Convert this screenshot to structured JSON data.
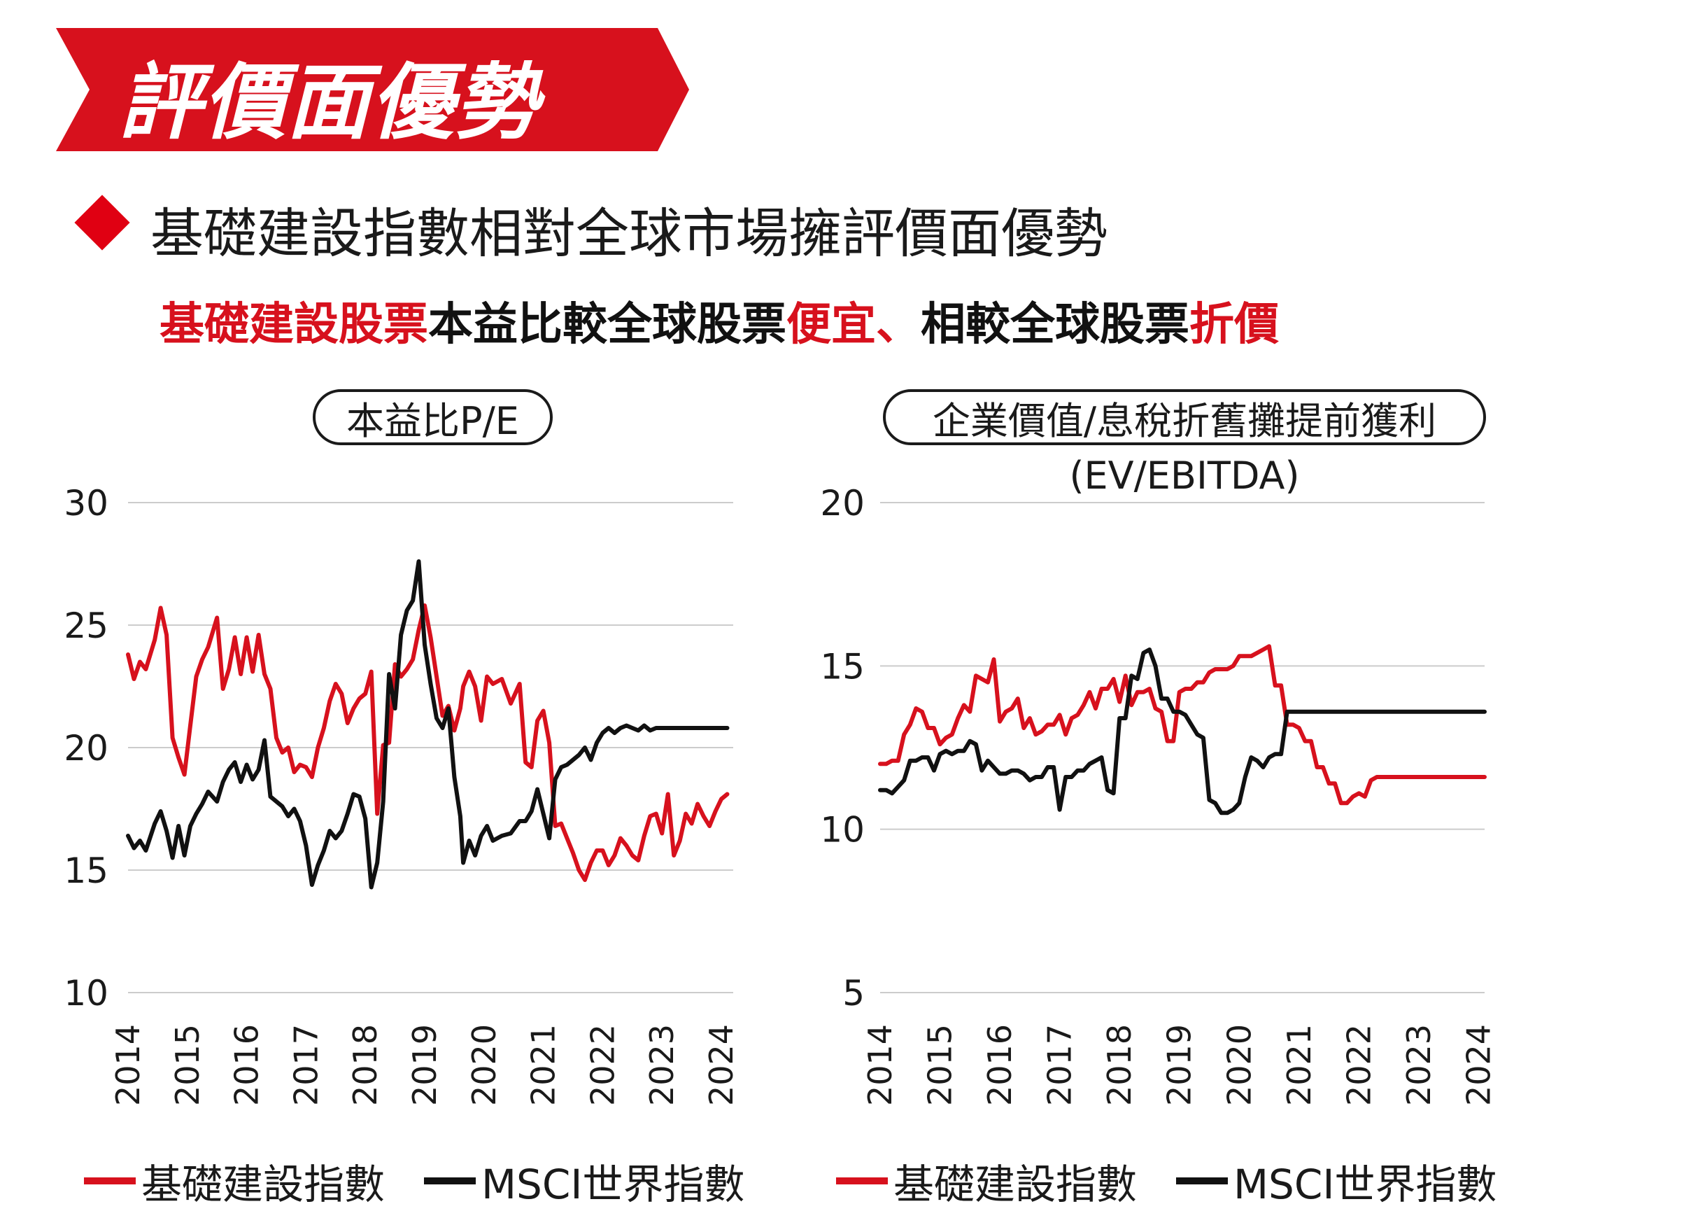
{
  "header": {
    "banner_title": "評價面優勢",
    "subheading": "基礎建設指數相對全球市場擁評價面優勢",
    "highlight": [
      {
        "text": "基礎建設股票",
        "color": "#d7111d"
      },
      {
        "text": "本益比較全球股票",
        "color": "#111111"
      },
      {
        "text": "便宜",
        "color": "#d7111d"
      },
      {
        "text": "、",
        "color": "#d7111d"
      },
      {
        "text": "相較全球股票",
        "color": "#111111"
      },
      {
        "text": "折價",
        "color": "#d7111d"
      }
    ]
  },
  "colors": {
    "brand_red": "#d7111d",
    "msci_black": "#111111",
    "grid": "#cccccc"
  },
  "legend": {
    "series_a": "基礎建設指數",
    "series_b": "MSCI世界指數"
  },
  "chart_data": [
    {
      "type": "line",
      "title": "本益比P/E",
      "subtitle": "",
      "x_ticks": [
        "2014",
        "2015",
        "2016",
        "2017",
        "2018",
        "2019",
        "2020",
        "2021",
        "2022",
        "2023",
        "2024"
      ],
      "y_ticks": [
        "30",
        "25",
        "20",
        "15",
        "10"
      ],
      "ylim": [
        10,
        30
      ],
      "xlim": [
        2014.0,
        2024.2
      ],
      "grid": true,
      "legend_position": "bottom",
      "series": [
        {
          "name": "基礎建設指數",
          "color": "#d7111d",
          "x": [
            2014.0,
            2014.1,
            2014.2,
            2014.3,
            2014.45,
            2014.55,
            2014.65,
            2014.75,
            2014.85,
            2014.95,
            2015.05,
            2015.15,
            2015.25,
            2015.35,
            2015.5,
            2015.6,
            2015.7,
            2015.8,
            2015.9,
            2016.0,
            2016.1,
            2016.2,
            2016.3,
            2016.4,
            2016.5,
            2016.6,
            2016.7,
            2016.8,
            2016.9,
            2017.0,
            2017.1,
            2017.2,
            2017.3,
            2017.4,
            2017.5,
            2017.6,
            2017.7,
            2017.8,
            2017.9,
            2018.0,
            2018.1,
            2018.2,
            2018.3,
            2018.4,
            2018.5,
            2018.6,
            2018.7,
            2018.8,
            2018.9,
            2019.0,
            2019.1,
            2019.2,
            2019.3,
            2019.4,
            2019.5,
            2019.6,
            2019.65,
            2019.75,
            2019.85,
            2019.95,
            2020.05,
            2020.15,
            2020.3,
            2020.45,
            2020.6,
            2020.7,
            2020.8,
            2020.9,
            2021.0,
            2021.1,
            2021.2,
            2021.3,
            2021.4,
            2021.5,
            2021.6,
            2021.7,
            2021.8,
            2021.9,
            2022.0,
            2022.1,
            2022.2,
            2022.3,
            2022.4,
            2022.5,
            2022.6,
            2022.7,
            2022.8,
            2022.9,
            2023.0,
            2023.1,
            2023.2,
            2023.3,
            2023.4,
            2023.5,
            2023.6,
            2023.7,
            2023.8,
            2023.9,
            2024.0,
            2024.1
          ],
          "y": [
            23.8,
            22.8,
            23.5,
            23.2,
            24.4,
            25.7,
            24.6,
            20.4,
            19.6,
            18.9,
            20.9,
            22.9,
            23.6,
            24.1,
            25.3,
            22.4,
            23.2,
            24.5,
            23.0,
            24.5,
            23.1,
            24.6,
            23.0,
            22.4,
            20.4,
            19.8,
            20.0,
            19.0,
            19.3,
            19.2,
            18.8,
            20.0,
            20.8,
            21.9,
            22.6,
            22.2,
            21.0,
            21.6,
            22.0,
            22.2,
            23.1,
            17.3,
            20.1,
            20.2,
            23.4,
            22.9,
            23.2,
            23.6,
            24.8,
            25.8,
            24.5,
            22.9,
            21.3,
            21.7,
            20.7,
            21.6,
            22.5,
            23.1,
            22.5,
            21.1,
            22.9,
            22.6,
            22.8,
            21.8,
            22.6,
            19.4,
            19.2,
            21.1,
            21.5,
            20.2,
            16.8,
            16.9,
            16.3,
            15.7,
            15.0,
            14.6,
            15.3,
            15.8,
            15.8,
            15.2,
            15.6,
            16.3,
            16.0,
            15.6,
            15.4,
            16.4,
            17.2,
            17.3,
            16.5,
            18.1,
            15.6,
            16.2,
            17.3,
            16.9,
            17.7,
            17.2,
            16.8,
            17.4,
            17.9,
            18.1
          ]
        },
        {
          "name": "MSCI世界指數",
          "color": "#111111",
          "x": [
            2014.0,
            2014.1,
            2014.2,
            2014.3,
            2014.45,
            2014.55,
            2014.65,
            2014.75,
            2014.85,
            2014.95,
            2015.05,
            2015.15,
            2015.25,
            2015.35,
            2015.5,
            2015.6,
            2015.7,
            2015.8,
            2015.9,
            2016.0,
            2016.1,
            2016.2,
            2016.3,
            2016.4,
            2016.5,
            2016.6,
            2016.7,
            2016.8,
            2016.9,
            2017.0,
            2017.1,
            2017.2,
            2017.3,
            2017.4,
            2017.5,
            2017.6,
            2017.7,
            2017.8,
            2017.9,
            2018.0,
            2018.1,
            2018.2,
            2018.3,
            2018.4,
            2018.5,
            2018.6,
            2018.7,
            2018.8,
            2018.9,
            2019.0,
            2019.1,
            2019.2,
            2019.3,
            2019.4,
            2019.5,
            2019.6,
            2019.65,
            2019.75,
            2019.85,
            2019.95,
            2020.05,
            2020.15,
            2020.3,
            2020.45,
            2020.6,
            2020.7,
            2020.8,
            2020.9,
            2021.0,
            2021.1,
            2021.2,
            2021.3,
            2021.4,
            2021.5,
            2021.6,
            2021.7,
            2021.8,
            2021.9,
            2022.0,
            2022.1,
            2022.2,
            2022.3,
            2022.4,
            2022.5,
            2022.6,
            2022.7,
            2022.8,
            2022.9,
            2023.0,
            2023.1,
            2023.2,
            2023.3,
            2023.4,
            2023.5,
            2023.6,
            2023.7,
            2023.8,
            2023.9,
            2024.0,
            2024.1
          ],
          "y": [
            16.4,
            15.9,
            16.2,
            15.8,
            16.9,
            17.4,
            16.6,
            15.5,
            16.8,
            15.6,
            16.8,
            17.3,
            17.7,
            18.2,
            17.8,
            18.6,
            19.1,
            19.4,
            18.6,
            19.3,
            18.7,
            19.1,
            20.3,
            18.0,
            17.8,
            17.6,
            17.2,
            17.5,
            17.0,
            16.0,
            14.4,
            15.2,
            15.8,
            16.6,
            16.3,
            16.6,
            17.3,
            18.1,
            18.0,
            17.1,
            14.3,
            15.3,
            17.8,
            23.0,
            21.6,
            24.6,
            25.6,
            26.0,
            27.6,
            24.2,
            22.6,
            21.2,
            20.8,
            21.6,
            18.8,
            17.2,
            15.3,
            16.2,
            15.6,
            16.4,
            16.8,
            16.2,
            16.4,
            16.5,
            17.0,
            17.0,
            17.4,
            18.3,
            17.3,
            16.3,
            18.7,
            19.2,
            19.3,
            19.5,
            19.7,
            20.0,
            19.5,
            20.2,
            20.6,
            20.8,
            20.6,
            20.8,
            20.9,
            20.8,
            20.7,
            20.9,
            20.7,
            20.8,
            20.8,
            20.8,
            20.8,
            20.8,
            20.8,
            20.8,
            20.8,
            20.8,
            20.8,
            20.8,
            20.8,
            20.8
          ]
        }
      ]
    },
    {
      "type": "line",
      "title": "企業價值/息稅折舊攤提前獲利",
      "subtitle": "(EV/EBITDA)",
      "x_ticks": [
        "2014",
        "2015",
        "2016",
        "2017",
        "2018",
        "2019",
        "2020",
        "2021",
        "2022",
        "2023",
        "2024"
      ],
      "y_ticks": [
        "20",
        "15",
        "10",
        "5"
      ],
      "ylim": [
        5,
        20
      ],
      "xlim": [
        2014.0,
        2024.1
      ],
      "grid": true,
      "legend_position": "bottom",
      "series": [
        {
          "name": "基礎建設指數",
          "color": "#d7111d",
          "x": [
            2014.0,
            2014.1,
            2014.2,
            2014.3,
            2014.4,
            2014.5,
            2014.6,
            2014.7,
            2014.8,
            2014.9,
            2015.0,
            2015.1,
            2015.2,
            2015.3,
            2015.4,
            2015.5,
            2015.6,
            2015.7,
            2015.8,
            2015.9,
            2016.0,
            2016.1,
            2016.2,
            2016.3,
            2016.4,
            2016.5,
            2016.6,
            2016.7,
            2016.8,
            2016.9,
            2017.0,
            2017.1,
            2017.2,
            2017.3,
            2017.4,
            2017.5,
            2017.6,
            2017.7,
            2017.8,
            2017.9,
            2018.0,
            2018.1,
            2018.2,
            2018.3,
            2018.4,
            2018.5,
            2018.6,
            2018.7,
            2018.8,
            2018.9,
            2019.0,
            2019.1,
            2019.2,
            2019.3,
            2019.4,
            2019.5,
            2019.6,
            2019.7,
            2019.8,
            2019.9,
            2020.0,
            2020.1,
            2020.2,
            2020.3,
            2020.4,
            2020.5,
            2020.6,
            2020.7,
            2020.8,
            2020.9,
            2021.0,
            2021.1,
            2021.2,
            2021.3,
            2021.4,
            2021.5,
            2021.6,
            2021.7,
            2021.8,
            2021.9,
            2022.0,
            2022.1,
            2022.2,
            2022.3,
            2022.4,
            2022.5,
            2022.6,
            2022.7,
            2022.8,
            2022.9,
            2023.0,
            2023.1,
            2023.2,
            2023.3,
            2023.4,
            2023.5,
            2023.6,
            2023.7,
            2023.8,
            2023.9,
            2024.0,
            2024.1
          ],
          "y": [
            12.0,
            12.0,
            12.1,
            12.1,
            12.9,
            13.2,
            13.7,
            13.6,
            13.1,
            13.1,
            12.6,
            12.8,
            12.9,
            13.4,
            13.8,
            13.6,
            14.7,
            14.6,
            14.5,
            15.2,
            13.3,
            13.6,
            13.7,
            14.0,
            13.1,
            13.4,
            12.9,
            13.0,
            13.2,
            13.2,
            13.5,
            12.9,
            13.4,
            13.5,
            13.8,
            14.2,
            13.7,
            14.3,
            14.3,
            14.6,
            13.9,
            14.7,
            13.8,
            14.2,
            14.2,
            14.3,
            13.7,
            13.6,
            12.7,
            12.7,
            14.2,
            14.3,
            14.3,
            14.5,
            14.5,
            14.8,
            14.9,
            14.9,
            14.9,
            15.0,
            15.3,
            15.3,
            15.3,
            15.4,
            15.5,
            15.6,
            14.4,
            14.4,
            13.2,
            13.2,
            13.1,
            12.7,
            12.7,
            11.9,
            11.9,
            11.4,
            11.4,
            10.8,
            10.8,
            11.0,
            11.1,
            11.0,
            11.5,
            11.6,
            11.6,
            11.6,
            11.6,
            11.6,
            11.6,
            11.6,
            11.6,
            11.6,
            11.6,
            11.6,
            11.6,
            11.6,
            11.6,
            11.6,
            11.6,
            11.6,
            11.6,
            11.6
          ]
        },
        {
          "name": "MSCI世界指數",
          "color": "#111111",
          "x": [
            2014.0,
            2014.1,
            2014.2,
            2014.3,
            2014.4,
            2014.5,
            2014.6,
            2014.7,
            2014.8,
            2014.9,
            2015.0,
            2015.1,
            2015.2,
            2015.3,
            2015.4,
            2015.5,
            2015.6,
            2015.7,
            2015.8,
            2015.9,
            2016.0,
            2016.1,
            2016.2,
            2016.3,
            2016.4,
            2016.5,
            2016.6,
            2016.7,
            2016.8,
            2016.9,
            2017.0,
            2017.1,
            2017.2,
            2017.3,
            2017.4,
            2017.5,
            2017.6,
            2017.7,
            2017.8,
            2017.9,
            2018.0,
            2018.1,
            2018.2,
            2018.3,
            2018.4,
            2018.5,
            2018.6,
            2018.7,
            2018.8,
            2018.9,
            2019.0,
            2019.1,
            2019.2,
            2019.3,
            2019.4,
            2019.5,
            2019.6,
            2019.7,
            2019.8,
            2019.9,
            2020.0,
            2020.1,
            2020.2,
            2020.3,
            2020.4,
            2020.5,
            2020.6,
            2020.7,
            2020.8,
            2020.9,
            2021.0,
            2021.1,
            2021.2,
            2021.3,
            2021.4,
            2021.5,
            2021.6,
            2021.7,
            2021.8,
            2021.9,
            2022.0,
            2022.1,
            2022.2,
            2022.3,
            2022.4,
            2022.5,
            2022.6,
            2022.7,
            2022.8,
            2022.9,
            2023.0,
            2023.1,
            2023.2,
            2023.3,
            2023.4,
            2023.5,
            2023.6,
            2023.7,
            2023.8,
            2023.9,
            2024.0,
            2024.1
          ],
          "y": [
            11.2,
            11.2,
            11.1,
            11.3,
            11.5,
            12.1,
            12.1,
            12.2,
            12.2,
            11.8,
            12.3,
            12.4,
            12.3,
            12.4,
            12.4,
            12.7,
            12.6,
            11.8,
            12.1,
            11.9,
            11.7,
            11.7,
            11.8,
            11.8,
            11.7,
            11.5,
            11.6,
            11.6,
            11.9,
            11.9,
            10.6,
            11.6,
            11.6,
            11.8,
            11.8,
            12.0,
            12.1,
            12.2,
            11.2,
            11.1,
            13.4,
            13.4,
            14.7,
            14.6,
            15.4,
            15.5,
            15.0,
            14.0,
            14.0,
            13.6,
            13.6,
            13.5,
            13.2,
            12.9,
            12.8,
            10.9,
            10.8,
            10.5,
            10.5,
            10.6,
            10.8,
            11.6,
            12.2,
            12.1,
            11.9,
            12.2,
            12.3,
            12.3,
            13.6,
            13.6,
            13.6,
            13.6,
            13.6,
            13.6,
            13.6,
            13.6,
            13.6,
            13.6,
            13.6,
            13.6,
            13.6,
            13.6,
            13.6,
            13.6,
            13.6,
            13.6,
            13.6,
            13.6,
            13.6,
            13.6,
            13.6,
            13.6,
            13.6,
            13.6,
            13.6,
            13.6,
            13.6,
            13.6,
            13.6,
            13.6,
            13.6,
            13.6
          ]
        }
      ]
    }
  ]
}
